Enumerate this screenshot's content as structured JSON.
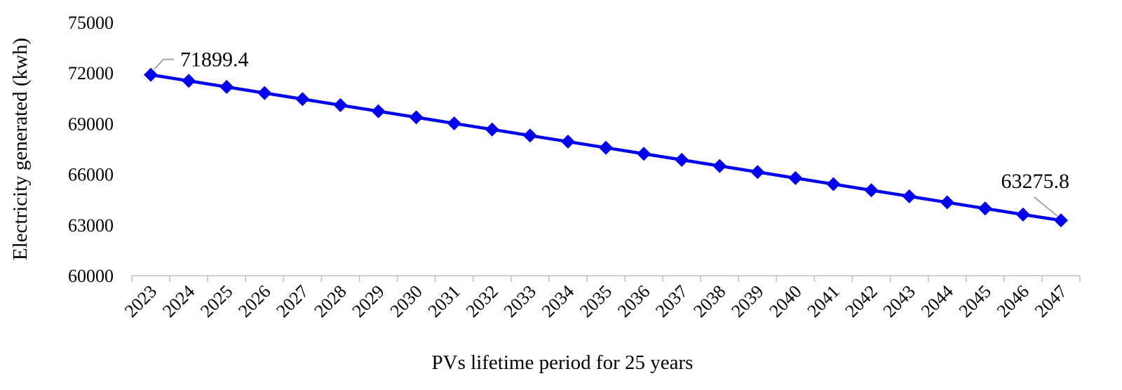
{
  "chart_data": {
    "type": "line",
    "title": "",
    "xlabel": "PVs lifetime period for 25 years",
    "ylabel": "Electricity generated (kwh)",
    "ylim": [
      60000,
      75000
    ],
    "yticks": [
      60000,
      63000,
      66000,
      69000,
      72000,
      75000
    ],
    "ytick_labels": [
      "60000",
      "63000",
      "66000",
      "69000",
      "72000",
      "75000"
    ],
    "categories": [
      "2023",
      "2024",
      "2025",
      "2026",
      "2027",
      "2028",
      "2029",
      "2030",
      "2031",
      "2032",
      "2033",
      "2034",
      "2035",
      "2036",
      "2037",
      "2038",
      "2039",
      "2040",
      "2041",
      "2042",
      "2043",
      "2044",
      "2045",
      "2046",
      "2047"
    ],
    "series": [
      {
        "values": [
          71899.4,
          71540,
          71180,
          70820,
          70460,
          70100,
          69740,
          69380,
          69020,
          68660,
          68300,
          67940,
          67580,
          67220,
          66860,
          66500,
          66140,
          65780,
          65420,
          65060,
          64700,
          64340,
          63980,
          63620,
          63275.8
        ],
        "color": "#0000ee",
        "marker": "diamond"
      }
    ],
    "annotations": [
      {
        "text": "71899.4",
        "category": "2023"
      },
      {
        "text": "63275.8",
        "category": "2047"
      }
    ],
    "grid": false,
    "legend": "none",
    "leader_line_color": "#a6a6a6"
  }
}
